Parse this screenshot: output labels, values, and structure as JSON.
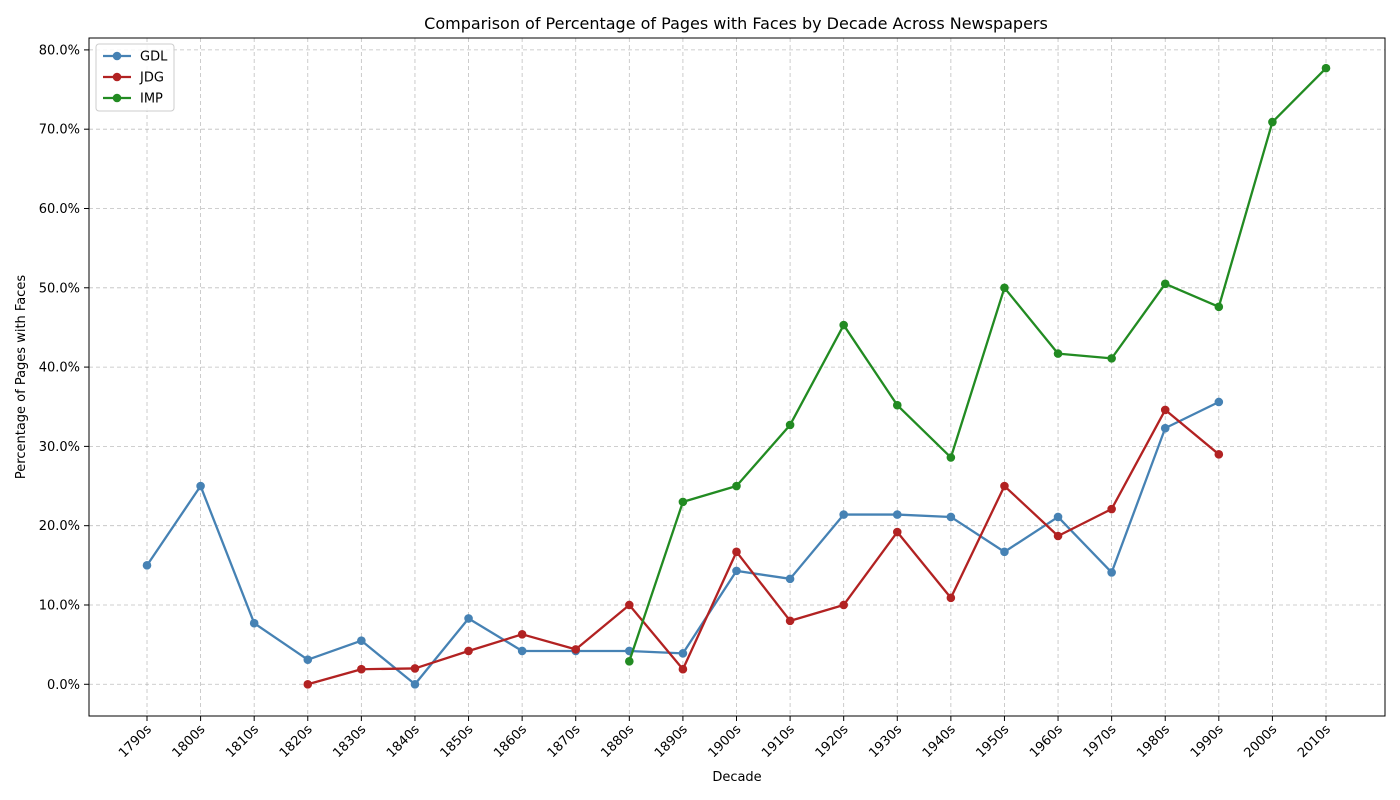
{
  "chart_data": {
    "type": "line",
    "title": "Comparison of Percentage of Pages with Faces by Decade Across Newspapers",
    "xlabel": "Decade",
    "ylabel": "Percentage of Pages with Faces",
    "ylim": [
      -4,
      81.5
    ],
    "yticks": [
      0,
      10,
      20,
      30,
      40,
      50,
      60,
      70,
      80
    ],
    "ytick_labels": [
      "0.0%",
      "10.0%",
      "20.0%",
      "30.0%",
      "40.0%",
      "50.0%",
      "60.0%",
      "70.0%",
      "80.0%"
    ],
    "grid": true,
    "legend_position": "top-left",
    "categories": [
      "1790s",
      "1800s",
      "1810s",
      "1820s",
      "1830s",
      "1840s",
      "1850s",
      "1860s",
      "1870s",
      "1880s",
      "1890s",
      "1900s",
      "1910s",
      "1920s",
      "1930s",
      "1940s",
      "1950s",
      "1960s",
      "1970s",
      "1980s",
      "1990s",
      "2000s",
      "2010s"
    ],
    "series": [
      {
        "name": "GDL",
        "color": "#4682b4",
        "values": [
          15.0,
          25.0,
          7.7,
          3.1,
          5.5,
          0.0,
          8.3,
          4.2,
          4.2,
          4.2,
          3.9,
          14.3,
          13.3,
          21.4,
          21.4,
          21.1,
          16.7,
          21.1,
          14.1,
          32.3,
          35.6,
          null,
          null
        ]
      },
      {
        "name": "JDG",
        "color": "#b22222",
        "values": [
          null,
          null,
          null,
          0.0,
          1.9,
          2.0,
          4.2,
          6.3,
          4.4,
          10.0,
          1.9,
          16.7,
          8.0,
          10.0,
          19.2,
          10.9,
          25.0,
          18.7,
          22.1,
          34.6,
          29.0,
          null,
          null
        ]
      },
      {
        "name": "IMP",
        "color": "#228b22",
        "values": [
          null,
          null,
          null,
          null,
          null,
          null,
          null,
          null,
          null,
          2.9,
          23.0,
          25.0,
          32.7,
          45.3,
          35.2,
          28.6,
          50.0,
          41.7,
          41.1,
          50.5,
          47.6,
          70.9,
          77.7
        ]
      }
    ]
  }
}
